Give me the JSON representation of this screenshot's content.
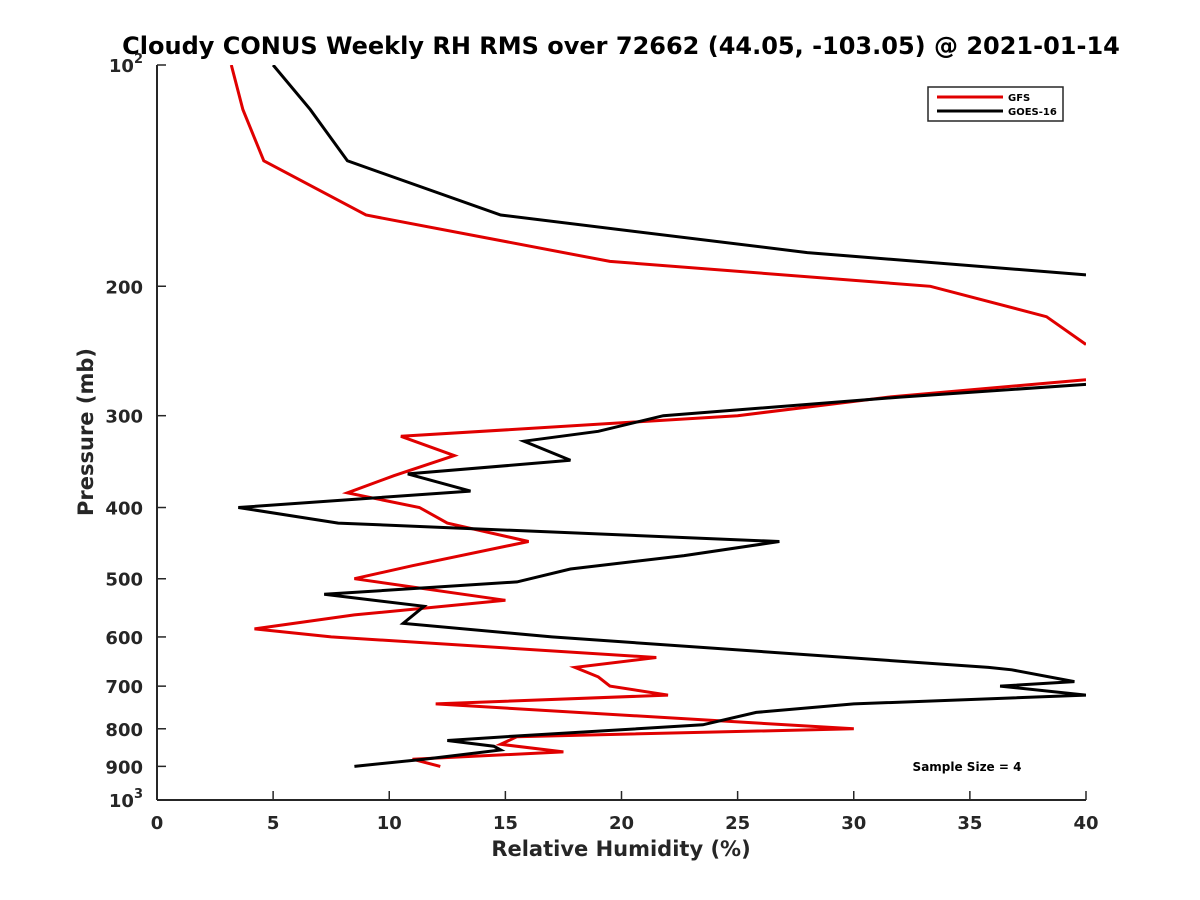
{
  "chart_data": {
    "type": "line",
    "title": "Cloudy CONUS Weekly RH RMS over 72662 (44.05, -103.05) @ 2021-01-14",
    "xlabel": "Relative Humidity (%)",
    "ylabel": "Pressure (mb)",
    "xlim": [
      0,
      40
    ],
    "ylim": [
      100,
      1000
    ],
    "yscale": "log",
    "y_reversed": true,
    "grid": false,
    "legend_position": "top-right",
    "x_ticks": [
      {
        "value": 0,
        "label": "0"
      },
      {
        "value": 5,
        "label": "5"
      },
      {
        "value": 10,
        "label": "10"
      },
      {
        "value": 15,
        "label": "15"
      },
      {
        "value": 20,
        "label": "20"
      },
      {
        "value": 25,
        "label": "25"
      },
      {
        "value": 30,
        "label": "30"
      },
      {
        "value": 35,
        "label": "35"
      },
      {
        "value": 40,
        "label": "40"
      }
    ],
    "y_ticks": [
      {
        "value": 100,
        "base": "10",
        "exp": "2"
      },
      {
        "value": 200,
        "label": "200"
      },
      {
        "value": 300,
        "label": "300"
      },
      {
        "value": 400,
        "label": "400"
      },
      {
        "value": 500,
        "label": "500"
      },
      {
        "value": 600,
        "label": "600"
      },
      {
        "value": 700,
        "label": "700"
      },
      {
        "value": 800,
        "label": "800"
      },
      {
        "value": 900,
        "label": "900"
      },
      {
        "value": 1000,
        "base": "10",
        "exp": "3"
      }
    ],
    "annotation": "Sample Size = 4",
    "series": [
      {
        "name": "GFS",
        "color": "#e00000",
        "points": [
          {
            "x": 3.2,
            "y": 100
          },
          {
            "x": 3.7,
            "y": 115
          },
          {
            "x": 4.6,
            "y": 135
          },
          {
            "x": 9.0,
            "y": 160
          },
          {
            "x": 19.5,
            "y": 185
          },
          {
            "x": 33.3,
            "y": 200
          },
          {
            "x": 38.3,
            "y": 220
          },
          {
            "x": 40.0,
            "y": 240
          },
          {
            "x": null,
            "y": 250
          },
          {
            "x": 40.0,
            "y": 268
          },
          {
            "x": 31.5,
            "y": 283
          },
          {
            "x": 25.0,
            "y": 300
          },
          {
            "x": 10.5,
            "y": 320
          },
          {
            "x": 12.8,
            "y": 340
          },
          {
            "x": 10.2,
            "y": 362
          },
          {
            "x": 8.2,
            "y": 382
          },
          {
            "x": 11.3,
            "y": 400
          },
          {
            "x": 12.5,
            "y": 420
          },
          {
            "x": 16.0,
            "y": 445
          },
          {
            "x": 11.0,
            "y": 480
          },
          {
            "x": 8.5,
            "y": 500
          },
          {
            "x": 15.0,
            "y": 535
          },
          {
            "x": 8.5,
            "y": 560
          },
          {
            "x": 4.2,
            "y": 585
          },
          {
            "x": 7.5,
            "y": 600
          },
          {
            "x": 21.5,
            "y": 640
          },
          {
            "x": 18.0,
            "y": 660
          },
          {
            "x": 19.0,
            "y": 680
          },
          {
            "x": 19.5,
            "y": 700
          },
          {
            "x": 22.0,
            "y": 720
          },
          {
            "x": 12.0,
            "y": 740
          },
          {
            "x": 30.0,
            "y": 800
          },
          {
            "x": 15.5,
            "y": 820
          },
          {
            "x": 14.8,
            "y": 840
          },
          {
            "x": 17.5,
            "y": 860
          },
          {
            "x": 11.0,
            "y": 880
          },
          {
            "x": 12.2,
            "y": 900
          }
        ]
      },
      {
        "name": "GOES-16",
        "color": "#000000",
        "points": [
          {
            "x": 5.0,
            "y": 100
          },
          {
            "x": 6.6,
            "y": 115
          },
          {
            "x": 8.2,
            "y": 135
          },
          {
            "x": 14.8,
            "y": 160
          },
          {
            "x": 28.0,
            "y": 180
          },
          {
            "x": 40.0,
            "y": 193
          },
          {
            "x": null,
            "y": 250
          },
          {
            "x": 40.0,
            "y": 272
          },
          {
            "x": 32.0,
            "y": 283
          },
          {
            "x": 21.8,
            "y": 300
          },
          {
            "x": 19.0,
            "y": 315
          },
          {
            "x": 15.8,
            "y": 325
          },
          {
            "x": 17.8,
            "y": 345
          },
          {
            "x": 10.8,
            "y": 360
          },
          {
            "x": 13.5,
            "y": 380
          },
          {
            "x": 3.5,
            "y": 400
          },
          {
            "x": 7.8,
            "y": 420
          },
          {
            "x": 26.8,
            "y": 445
          },
          {
            "x": 22.7,
            "y": 465
          },
          {
            "x": 17.8,
            "y": 485
          },
          {
            "x": 15.5,
            "y": 505
          },
          {
            "x": 7.2,
            "y": 525
          },
          {
            "x": 11.5,
            "y": 545
          },
          {
            "x": 10.6,
            "y": 575
          },
          {
            "x": 17.0,
            "y": 600
          },
          {
            "x": 35.8,
            "y": 660
          },
          {
            "x": 36.8,
            "y": 665
          },
          {
            "x": 39.5,
            "y": 690
          },
          {
            "x": 36.3,
            "y": 700
          },
          {
            "x": 40.0,
            "y": 720
          },
          {
            "x": 30.0,
            "y": 740
          },
          {
            "x": 25.8,
            "y": 760
          },
          {
            "x": 23.5,
            "y": 790
          },
          {
            "x": 15.0,
            "y": 820
          },
          {
            "x": 12.5,
            "y": 830
          },
          {
            "x": 14.5,
            "y": 845
          },
          {
            "x": 14.8,
            "y": 855
          },
          {
            "x": 11.5,
            "y": 880
          },
          {
            "x": 8.5,
            "y": 900
          }
        ]
      }
    ]
  }
}
